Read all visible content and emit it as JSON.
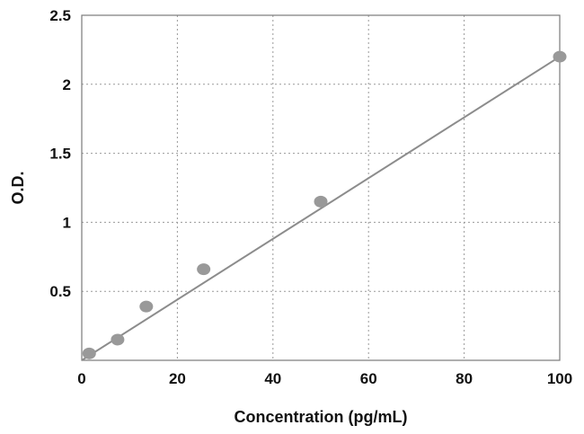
{
  "chart_data": {
    "type": "scatter",
    "title": "",
    "xlabel": "Concentration (pg/mL)",
    "ylabel": "O.D.",
    "xlim": [
      0,
      100
    ],
    "ylim": [
      0,
      2.5
    ],
    "x_ticks": [
      0,
      20,
      40,
      60,
      80,
      100
    ],
    "y_ticks": [
      0.5,
      1,
      1.5,
      2,
      2.5
    ],
    "x_tick_labels": [
      "0",
      "20",
      "40",
      "60",
      "80",
      "100"
    ],
    "y_tick_labels": [
      "0.5",
      "1",
      "1.5",
      "2",
      "2.5"
    ],
    "grid": true,
    "grid_style": "dotted",
    "series": [
      {
        "x": [
          1.56,
          7.5,
          13.5,
          25.5,
          50,
          100
        ],
        "y": [
          0.05,
          0.15,
          0.39,
          0.66,
          1.15,
          2.2
        ],
        "marker_color": "#999999"
      }
    ],
    "trendline": {
      "type": "linear",
      "from": [
        0,
        0.0
      ],
      "to": [
        100,
        2.2
      ],
      "color": "#8c8c8c"
    }
  }
}
